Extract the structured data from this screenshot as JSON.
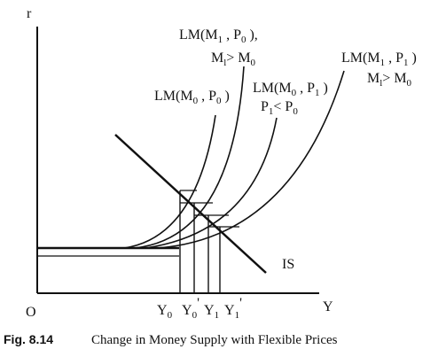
{
  "axes": {
    "y_label": "r",
    "x_label": "Y",
    "origin": "O"
  },
  "curves": {
    "is": "IS",
    "lm_m0_p0": {
      "main": "LM(M",
      "sub0": "0",
      "mid": " , P",
      "sub1": "0",
      "end": " )"
    },
    "lm_m1_p0": {
      "main": "LM(M",
      "sub0": "1",
      "mid": " , P",
      "sub1": "0",
      "end": " ),",
      "note_a": "M",
      "note_a_sub": "l",
      "note_op": "> M",
      "note_b_sub": "0"
    },
    "lm_m0_p1": {
      "main": "LM(M",
      "sub0": "0",
      "mid": " , P",
      "sub1": "1",
      "end": " )",
      "note_a": "P",
      "note_a_sub": "1",
      "note_op": "< P",
      "note_b_sub": "0"
    },
    "lm_m1_p1": {
      "main": "LM(M",
      "sub0": "1",
      "mid": " , P",
      "sub1": "1",
      "end": " )",
      "note_a": "M",
      "note_a_sub": "l",
      "note_op": "> M",
      "note_b_sub": "0"
    }
  },
  "income_levels": [
    {
      "base": "Y",
      "sub": "0",
      "prime": ""
    },
    {
      "base": "Y",
      "sub": "0",
      "prime": "'"
    },
    {
      "base": "Y",
      "sub": "1",
      "prime": ""
    },
    {
      "base": "Y",
      "sub": "1",
      "prime": "'"
    }
  ],
  "caption": {
    "figure": "Fig. 8.14",
    "title": "Change in Money Supply with Flexible Prices"
  }
}
